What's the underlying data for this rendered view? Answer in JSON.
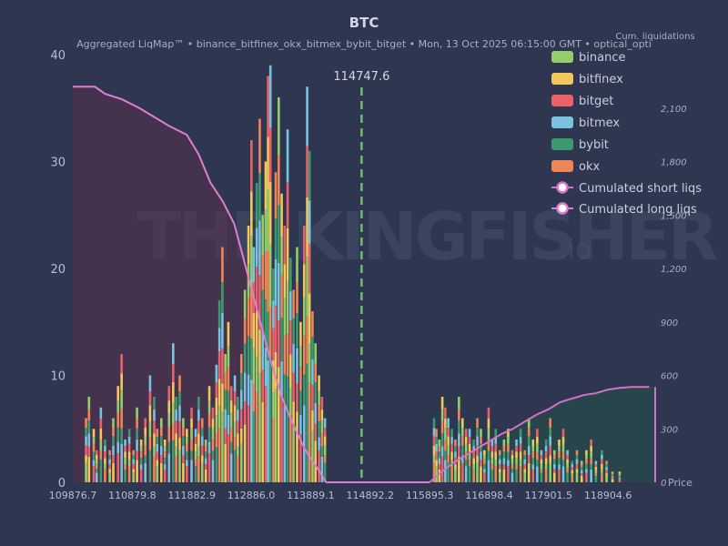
{
  "chart_data": {
    "type": "bar",
    "title": "BTC",
    "subtitle": "Aggregated LiqMap™  •  binance_bitfinex_okx_bitmex_bybit_bitget  •  Mon, 13 Oct 2025 06:15:00 GMT  •  optical_opti",
    "right_axis_label": "Cum. liquidations",
    "current_price_label": "114747.6",
    "current_price": 114747.6,
    "x_range": [
      109876.7,
      119700
    ],
    "y_range": [
      0,
      40
    ],
    "y2_range": [
      0,
      2400
    ],
    "x_ticks": [
      "109876.7",
      "110879.8",
      "111882.9",
      "112886.0",
      "113889.1",
      "114892.2",
      "115895.3",
      "116898.4",
      "117901.5",
      "118904.6"
    ],
    "x_tick_values": [
      109876.7,
      110879.8,
      111882.9,
      112886.0,
      113889.1,
      114892.2,
      115895.3,
      116898.4,
      117901.5,
      118904.6
    ],
    "y_ticks": [
      "0",
      "10",
      "20",
      "30",
      "40"
    ],
    "y_tick_values": [
      0,
      10,
      20,
      30,
      40
    ],
    "y2_ticks": [
      "0",
      "300",
      "600",
      "900",
      "1,200",
      "1,500",
      "1,800",
      "2,100"
    ],
    "y2_tick_values": [
      0,
      300,
      600,
      900,
      1200,
      1500,
      1800,
      2100
    ],
    "y2_axis_suffix": "Price",
    "bar_series": [
      {
        "name": "binance",
        "color": "#96cd6a"
      },
      {
        "name": "bitfinex",
        "color": "#f2c85b"
      },
      {
        "name": "bitget",
        "color": "#e9626a"
      },
      {
        "name": "bitmex",
        "color": "#78c4e0"
      },
      {
        "name": "bybit",
        "color": "#3c9a6e"
      },
      {
        "name": "okx",
        "color": "#ef8658"
      }
    ],
    "bars": [
      {
        "x": 110100,
        "h": 6
      },
      {
        "x": 110150,
        "h": 8
      },
      {
        "x": 110230,
        "h": 5
      },
      {
        "x": 110280,
        "h": 3
      },
      {
        "x": 110350,
        "h": 7
      },
      {
        "x": 110420,
        "h": 4
      },
      {
        "x": 110500,
        "h": 3
      },
      {
        "x": 110560,
        "h": 6
      },
      {
        "x": 110640,
        "h": 9
      },
      {
        "x": 110700,
        "h": 12
      },
      {
        "x": 110760,
        "h": 4
      },
      {
        "x": 110830,
        "h": 5
      },
      {
        "x": 110900,
        "h": 3
      },
      {
        "x": 110960,
        "h": 7
      },
      {
        "x": 111030,
        "h": 4
      },
      {
        "x": 111100,
        "h": 6
      },
      {
        "x": 111180,
        "h": 10
      },
      {
        "x": 111250,
        "h": 8
      },
      {
        "x": 111300,
        "h": 5
      },
      {
        "x": 111370,
        "h": 6
      },
      {
        "x": 111430,
        "h": 4
      },
      {
        "x": 111500,
        "h": 9
      },
      {
        "x": 111570,
        "h": 13
      },
      {
        "x": 111620,
        "h": 8
      },
      {
        "x": 111680,
        "h": 10
      },
      {
        "x": 111740,
        "h": 6
      },
      {
        "x": 111800,
        "h": 5
      },
      {
        "x": 111880,
        "h": 7
      },
      {
        "x": 111950,
        "h": 5
      },
      {
        "x": 112000,
        "h": 8
      },
      {
        "x": 112060,
        "h": 6
      },
      {
        "x": 112120,
        "h": 4
      },
      {
        "x": 112180,
        "h": 9
      },
      {
        "x": 112240,
        "h": 7
      },
      {
        "x": 112300,
        "h": 11
      },
      {
        "x": 112350,
        "h": 17
      },
      {
        "x": 112400,
        "h": 22
      },
      {
        "x": 112450,
        "h": 12
      },
      {
        "x": 112500,
        "h": 15
      },
      {
        "x": 112550,
        "h": 9
      },
      {
        "x": 112610,
        "h": 10
      },
      {
        "x": 112660,
        "h": 8
      },
      {
        "x": 112720,
        "h": 12
      },
      {
        "x": 112780,
        "h": 18
      },
      {
        "x": 112840,
        "h": 24
      },
      {
        "x": 112890,
        "h": 32
      },
      {
        "x": 112930,
        "h": 22
      },
      {
        "x": 112980,
        "h": 28
      },
      {
        "x": 113030,
        "h": 34
      },
      {
        "x": 113080,
        "h": 25
      },
      {
        "x": 113130,
        "h": 30
      },
      {
        "x": 113170,
        "h": 38
      },
      {
        "x": 113210,
        "h": 39
      },
      {
        "x": 113260,
        "h": 20
      },
      {
        "x": 113300,
        "h": 29
      },
      {
        "x": 113350,
        "h": 36
      },
      {
        "x": 113400,
        "h": 27
      },
      {
        "x": 113450,
        "h": 24
      },
      {
        "x": 113500,
        "h": 33
      },
      {
        "x": 113550,
        "h": 21
      },
      {
        "x": 113600,
        "h": 18
      },
      {
        "x": 113660,
        "h": 22
      },
      {
        "x": 113720,
        "h": 15
      },
      {
        "x": 113780,
        "h": 24
      },
      {
        "x": 113830,
        "h": 37
      },
      {
        "x": 113870,
        "h": 31
      },
      {
        "x": 113920,
        "h": 16
      },
      {
        "x": 113970,
        "h": 13
      },
      {
        "x": 114030,
        "h": 10
      },
      {
        "x": 114080,
        "h": 8
      },
      {
        "x": 114130,
        "h": 6
      },
      {
        "x": 115970,
        "h": 6
      },
      {
        "x": 116010,
        "h": 5
      },
      {
        "x": 116060,
        "h": 4
      },
      {
        "x": 116110,
        "h": 8
      },
      {
        "x": 116160,
        "h": 7
      },
      {
        "x": 116210,
        "h": 6
      },
      {
        "x": 116270,
        "h": 5
      },
      {
        "x": 116330,
        "h": 4
      },
      {
        "x": 116390,
        "h": 8
      },
      {
        "x": 116450,
        "h": 6
      },
      {
        "x": 116510,
        "h": 5
      },
      {
        "x": 116570,
        "h": 5
      },
      {
        "x": 116640,
        "h": 4
      },
      {
        "x": 116700,
        "h": 6
      },
      {
        "x": 116760,
        "h": 5
      },
      {
        "x": 116820,
        "h": 3
      },
      {
        "x": 116890,
        "h": 7
      },
      {
        "x": 116950,
        "h": 4
      },
      {
        "x": 117010,
        "h": 5
      },
      {
        "x": 117080,
        "h": 3
      },
      {
        "x": 117150,
        "h": 4
      },
      {
        "x": 117220,
        "h": 5
      },
      {
        "x": 117290,
        "h": 3
      },
      {
        "x": 117360,
        "h": 4
      },
      {
        "x": 117430,
        "h": 5
      },
      {
        "x": 117500,
        "h": 3
      },
      {
        "x": 117570,
        "h": 6
      },
      {
        "x": 117640,
        "h": 4
      },
      {
        "x": 117710,
        "h": 5
      },
      {
        "x": 117780,
        "h": 3
      },
      {
        "x": 117860,
        "h": 4
      },
      {
        "x": 117930,
        "h": 6
      },
      {
        "x": 118000,
        "h": 3
      },
      {
        "x": 118080,
        "h": 4
      },
      {
        "x": 118150,
        "h": 5
      },
      {
        "x": 118220,
        "h": 3
      },
      {
        "x": 118300,
        "h": 2
      },
      {
        "x": 118380,
        "h": 3
      },
      {
        "x": 118460,
        "h": 2
      },
      {
        "x": 118540,
        "h": 3
      },
      {
        "x": 118620,
        "h": 4
      },
      {
        "x": 118700,
        "h": 2
      },
      {
        "x": 118800,
        "h": 3
      },
      {
        "x": 118880,
        "h": 2
      },
      {
        "x": 118980,
        "h": 1
      },
      {
        "x": 119100,
        "h": 1
      }
    ],
    "cum_short": {
      "name": "Cumulated short liqs",
      "color": "#d86fc8",
      "x": [
        115895.3,
        116100,
        116300,
        116500,
        116700,
        116900,
        117100,
        117300,
        117500,
        117700,
        117900,
        118100,
        118300,
        118500,
        118700,
        118900,
        119100,
        119300,
        119600
      ],
      "y": [
        0,
        60,
        110,
        150,
        190,
        230,
        270,
        300,
        340,
        380,
        410,
        450,
        470,
        490,
        500,
        520,
        530,
        535,
        535
      ]
    },
    "cum_long": {
      "name": "Cumulated long liqs",
      "color": "#e07ed3",
      "x": [
        109876.7,
        110250,
        110420,
        110700,
        111000,
        111200,
        111500,
        111800,
        112000,
        112200,
        112400,
        112600,
        112800,
        113000,
        113200,
        113400,
        113600,
        113800,
        114000,
        114150
      ],
      "y": [
        2220,
        2220,
        2180,
        2150,
        2100,
        2060,
        2000,
        1950,
        1840,
        1680,
        1580,
        1450,
        1200,
        950,
        700,
        480,
        320,
        180,
        80,
        0
      ]
    },
    "legend": [
      "binance",
      "bitfinex",
      "bitget",
      "bitmex",
      "bybit",
      "okx",
      "Cumulated short liqs",
      "Cumulated long liqs"
    ],
    "legend_position": "top-right",
    "watermark": "THE KINGFISHER",
    "watermark_suffix": ".io"
  }
}
